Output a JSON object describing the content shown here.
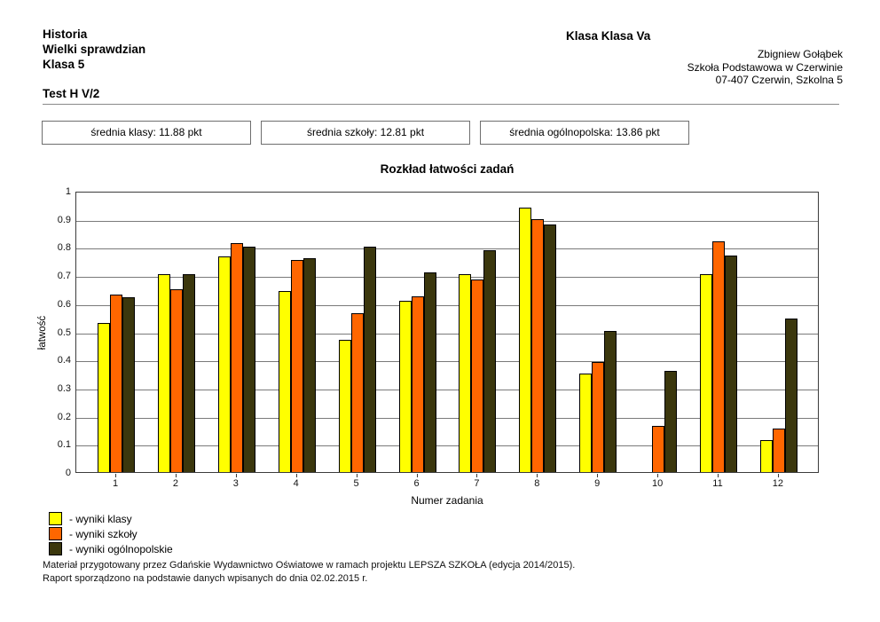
{
  "header": {
    "subject": "Historia",
    "test_type": "Wielki sprawdzian",
    "grade": "Klasa 5",
    "test_id": "Test H V/2",
    "class_label": "Klasa Klasa Va",
    "teacher": "Zbigniew Gołąbek",
    "school": "Szkoła Podstawowa w Czerwinie",
    "address": "07-407 Czerwin, Szkolna 5"
  },
  "stats": {
    "boxes": [
      {
        "label": "średnia klasy: 11.88 pkt"
      },
      {
        "label": "średnia szkoły: 12.81 pkt"
      },
      {
        "label": "średnia ogólnopolska: 13.86 pkt"
      }
    ]
  },
  "chart_data": {
    "type": "bar",
    "title": "Rozkład łatwości zadań",
    "xlabel": "Numer zadania",
    "ylabel": "łatwość",
    "ylim": [
      0,
      1
    ],
    "ytick_step": 0.1,
    "grid": true,
    "legend_position": "below-left",
    "categories": [
      "1",
      "2",
      "3",
      "4",
      "5",
      "6",
      "7",
      "8",
      "9",
      "10",
      "11",
      "12"
    ],
    "series": [
      {
        "name": "wyniki klasy",
        "color": "#FFFF00",
        "values": [
          0.53,
          0.705,
          0.765,
          0.645,
          0.47,
          0.61,
          0.705,
          0.94,
          0.35,
          0,
          0.705,
          0.115
        ]
      },
      {
        "name": "wyniki szkoły",
        "color": "#FF6600",
        "values": [
          0.63,
          0.65,
          0.815,
          0.755,
          0.565,
          0.625,
          0.685,
          0.9,
          0.39,
          0.165,
          0.82,
          0.155
        ]
      },
      {
        "name": "wyniki ogólnopolskie",
        "color": "#3B370D",
        "values": [
          0.62,
          0.705,
          0.8,
          0.76,
          0.8,
          0.71,
          0.79,
          0.88,
          0.5,
          0.36,
          0.77,
          0.545
        ]
      }
    ]
  },
  "legend": {
    "items": [
      {
        "label": "- wyniki klasy",
        "color": "#FFFF00"
      },
      {
        "label": "- wyniki szkoły",
        "color": "#FF6600"
      },
      {
        "label": "- wyniki ogólnopolskie",
        "color": "#3B370D"
      }
    ]
  },
  "footer": {
    "line1": "Materiał przygotowany przez Gdańskie Wydawnictwo Oświatowe w ramach projektu LEPSZA SZKOŁA (edycja 2014/2015).",
    "line2": "Raport sporządzono na podstawie danych wpisanych do dnia 02.02.2015 r."
  },
  "colors": {
    "grid": "#7a7a7a",
    "plot_border": "#3c3c3c",
    "bar_border": "#000000"
  }
}
